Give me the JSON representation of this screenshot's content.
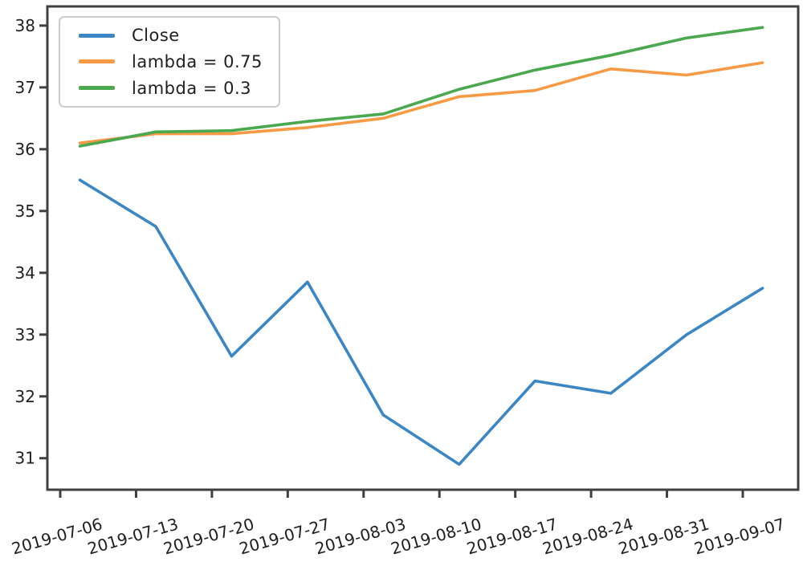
{
  "chart_data": {
    "type": "line",
    "title": "",
    "xlabel": "",
    "ylabel": "",
    "x_tick_labels": [
      "2019-07-06",
      "2019-07-13",
      "2019-07-20",
      "2019-07-27",
      "2019-08-03",
      "2019-08-10",
      "2019-08-17",
      "2019-08-24",
      "2019-08-31",
      "2019-09-07"
    ],
    "x_offset_fraction": 0.26,
    "y_ticks": [
      31,
      32,
      33,
      34,
      35,
      36,
      37,
      38
    ],
    "ylim": [
      30.49,
      38.31
    ],
    "grid": false,
    "axis_color": "#404040",
    "text_color": "#1f1f1f",
    "legend_position": "upper-left",
    "series": [
      {
        "name": "Close",
        "color": "#3b86c4",
        "values": [
          35.5,
          34.75,
          32.65,
          33.85,
          31.7,
          30.9,
          32.25,
          32.05,
          33.0,
          33.75
        ]
      },
      {
        "name": "lambda = 0.75",
        "color": "#f89a44",
        "values": [
          36.1,
          36.25,
          36.25,
          36.35,
          36.5,
          36.85,
          36.95,
          37.3,
          37.2,
          37.4
        ]
      },
      {
        "name": "lambda = 0.3",
        "color": "#4aa84e",
        "values": [
          36.05,
          36.28,
          36.3,
          36.45,
          36.57,
          36.97,
          37.28,
          37.52,
          37.8,
          37.97
        ]
      }
    ]
  }
}
